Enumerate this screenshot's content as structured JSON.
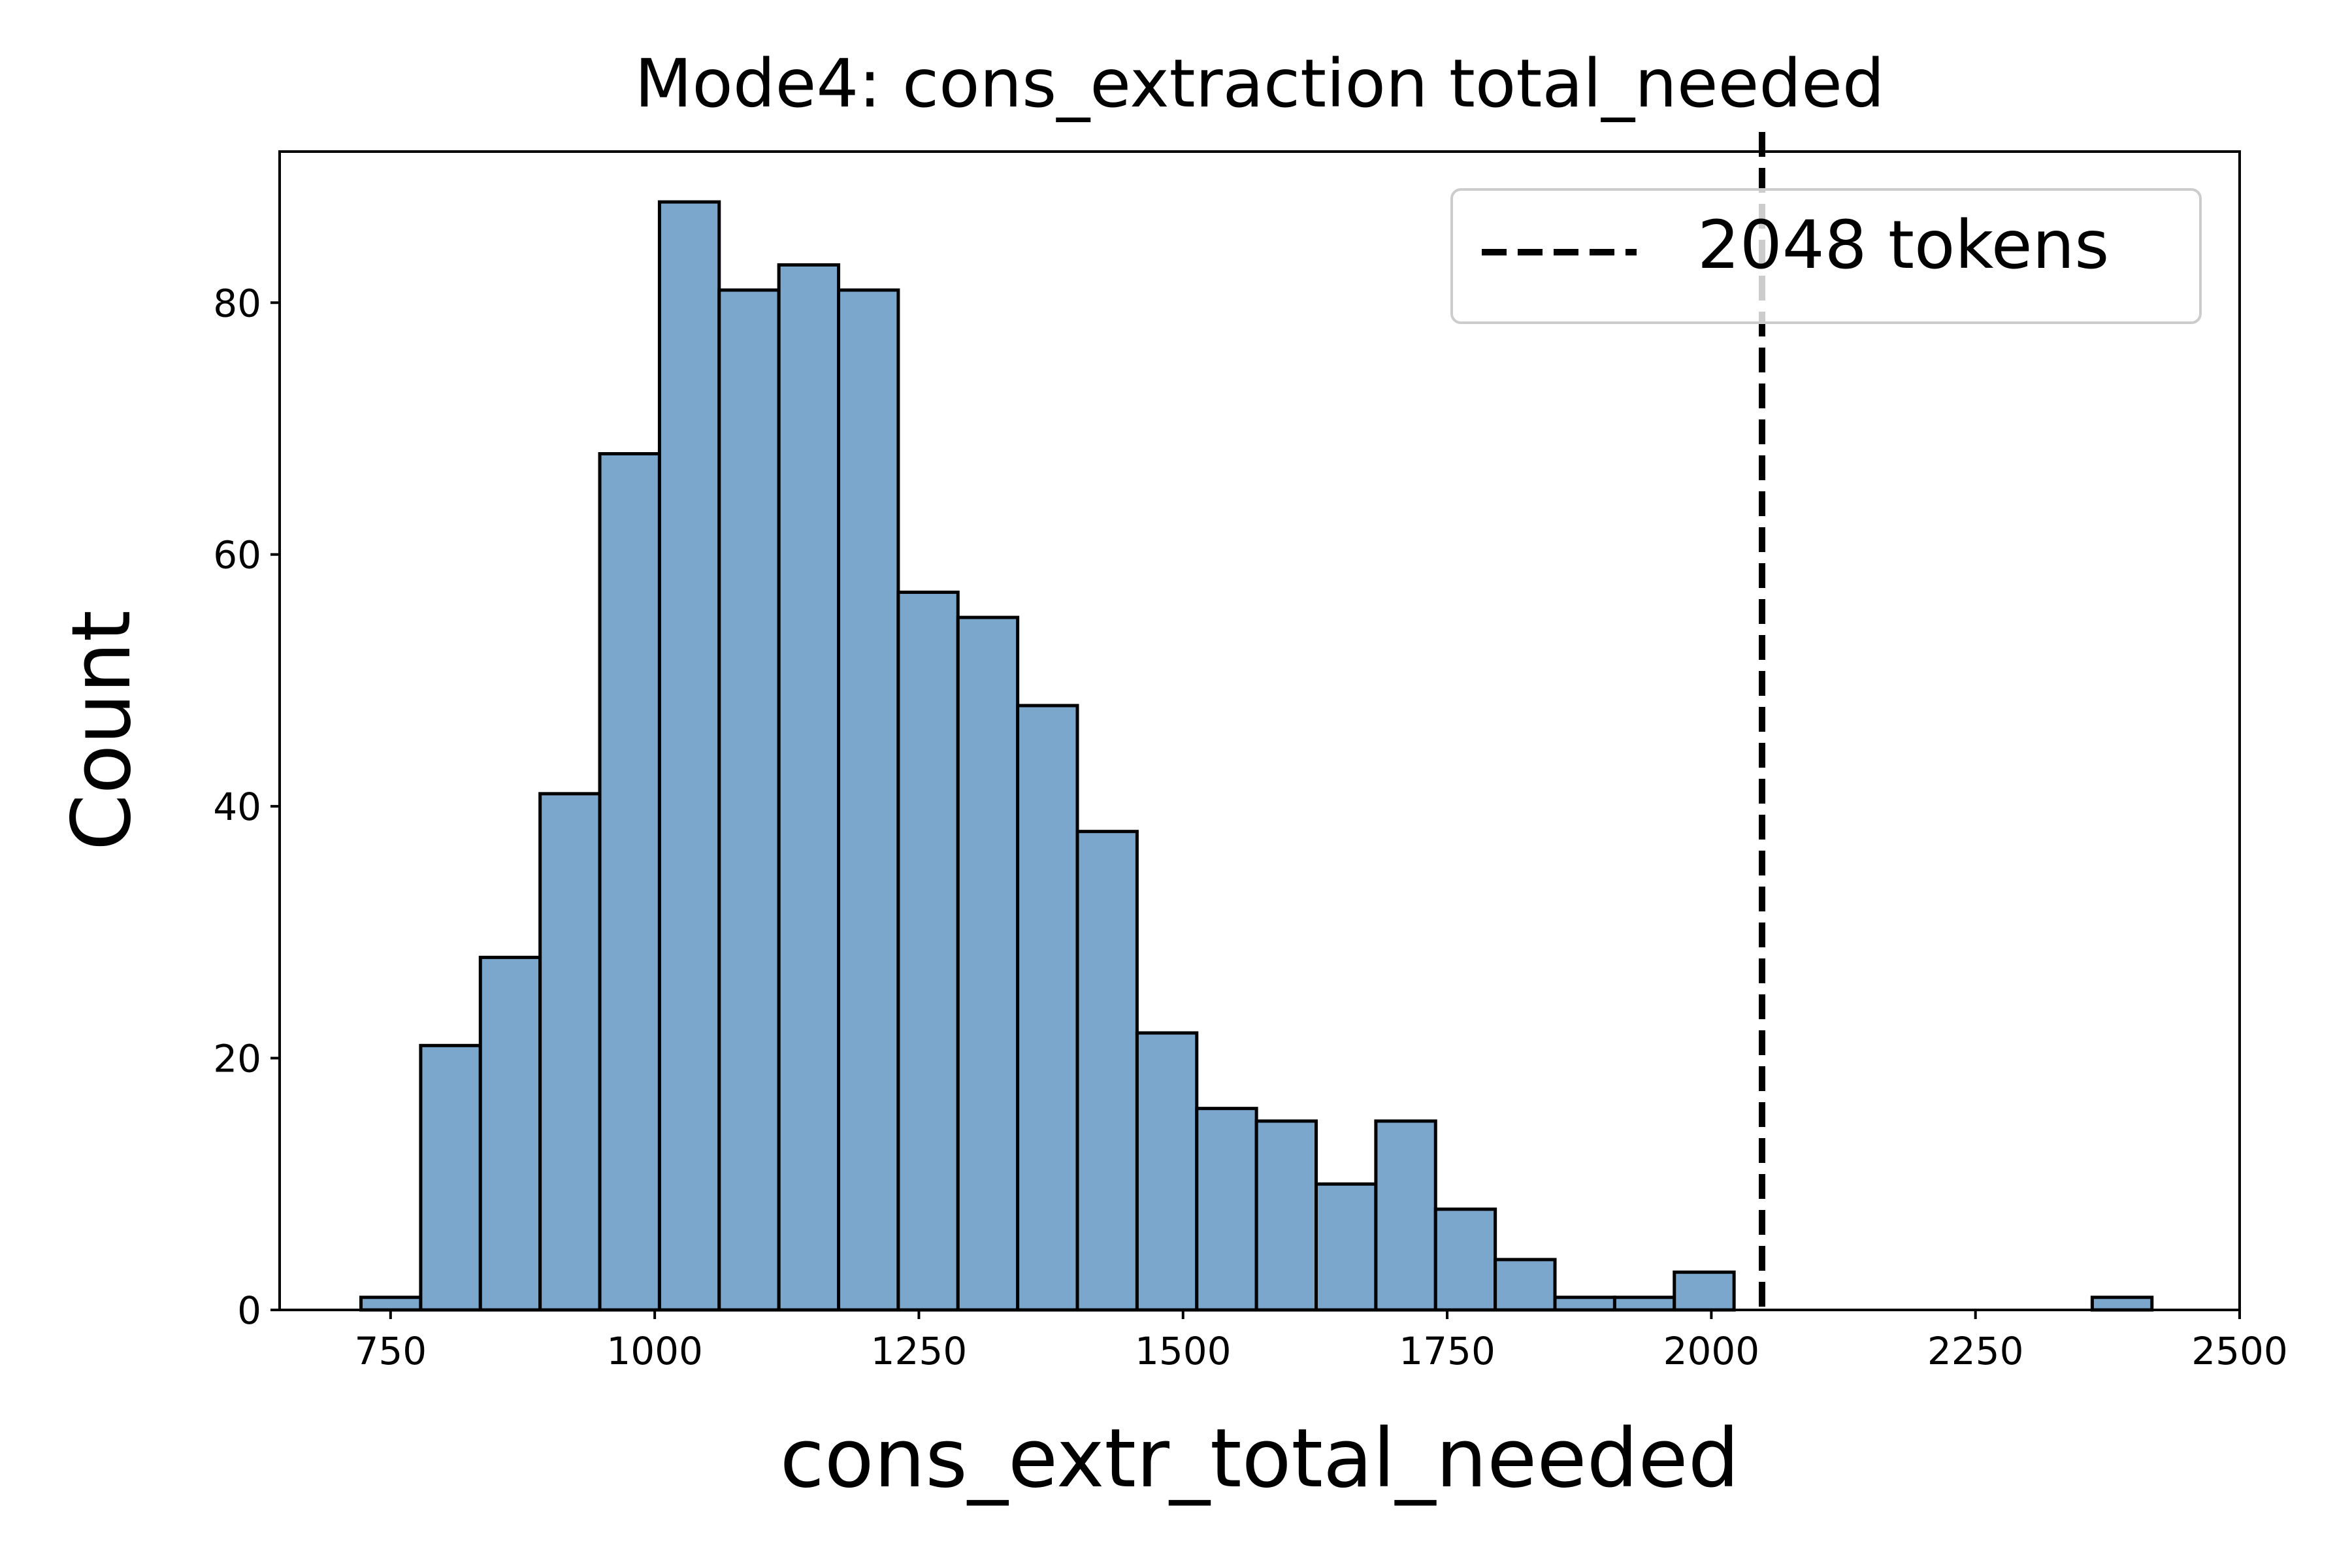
{
  "chart_data": {
    "type": "bar",
    "title": "Mode4: cons_extraction total_needed",
    "xlabel": "cons_extr_total_needed",
    "ylabel": "Count",
    "xlim": [
      645,
      2500
    ],
    "ylim": [
      0,
      92
    ],
    "x_ticks": [
      750,
      1000,
      1250,
      1500,
      1750,
      2000,
      2250,
      2500
    ],
    "y_ticks": [
      0,
      20,
      40,
      60,
      80
    ],
    "bin_width": 56.5,
    "bins": [
      {
        "start": 722,
        "end": 778.5,
        "count": 1
      },
      {
        "start": 778.5,
        "end": 835,
        "count": 21
      },
      {
        "start": 835,
        "end": 891.5,
        "count": 28
      },
      {
        "start": 891.5,
        "end": 948,
        "count": 41
      },
      {
        "start": 948,
        "end": 1004.5,
        "count": 68
      },
      {
        "start": 1004.5,
        "end": 1061,
        "count": 88
      },
      {
        "start": 1061,
        "end": 1117.5,
        "count": 81
      },
      {
        "start": 1117.5,
        "end": 1174,
        "count": 83
      },
      {
        "start": 1174,
        "end": 1230.5,
        "count": 81
      },
      {
        "start": 1230.5,
        "end": 1287,
        "count": 57
      },
      {
        "start": 1287,
        "end": 1343.5,
        "count": 55
      },
      {
        "start": 1343.5,
        "end": 1400,
        "count": 48
      },
      {
        "start": 1400,
        "end": 1456.5,
        "count": 38
      },
      {
        "start": 1456.5,
        "end": 1513,
        "count": 22
      },
      {
        "start": 1513,
        "end": 1569.5,
        "count": 16
      },
      {
        "start": 1569.5,
        "end": 1626,
        "count": 15
      },
      {
        "start": 1626,
        "end": 1682.5,
        "count": 10
      },
      {
        "start": 1682.5,
        "end": 1739,
        "count": 15
      },
      {
        "start": 1739,
        "end": 1795.5,
        "count": 8
      },
      {
        "start": 1795.5,
        "end": 1852,
        "count": 4
      },
      {
        "start": 1852,
        "end": 1908.5,
        "count": 1
      },
      {
        "start": 1908.5,
        "end": 1965,
        "count": 1
      },
      {
        "start": 1965,
        "end": 2021.5,
        "count": 3
      },
      {
        "start": 2021.5,
        "end": 2078,
        "count": 0
      },
      {
        "start": 2078,
        "end": 2134.5,
        "count": 0
      },
      {
        "start": 2134.5,
        "end": 2191,
        "count": 0
      },
      {
        "start": 2191,
        "end": 2247.5,
        "count": 0
      },
      {
        "start": 2247.5,
        "end": 2304,
        "count": 0
      },
      {
        "start": 2304,
        "end": 2360.5,
        "count": 0
      },
      {
        "start": 2360.5,
        "end": 2417,
        "count": 1
      }
    ],
    "reference_line": {
      "x": 2048,
      "label": "2048 tokens",
      "style": "dashed",
      "color": "#000000"
    },
    "legend": {
      "placement": "top-right",
      "entries": [
        "2048 tokens"
      ]
    },
    "bar_color": "#7ba7cc",
    "bar_edge_color": "#000000",
    "grid": false
  }
}
